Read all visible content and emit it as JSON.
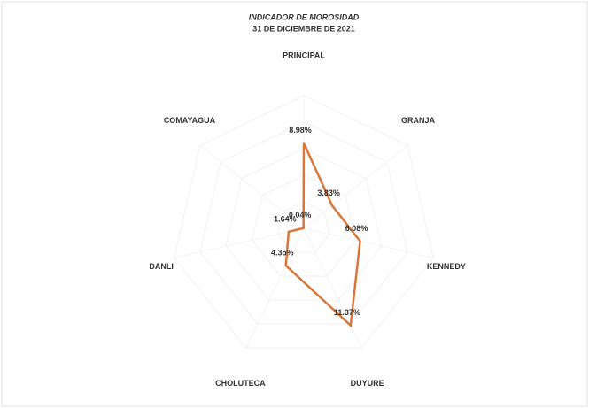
{
  "chart_data": {
    "type": "radar",
    "title": "INDICADOR DE MOROSIDAD",
    "subtitle": "31 DE DICIEMBRE DE 2021",
    "categories": [
      "PRINCIPAL",
      "GRANJA",
      "KENNEDY",
      "DUYURE",
      "CHOLUTECA",
      "DANLI",
      "COMAYAGUA"
    ],
    "values": [
      8.98,
      3.83,
      6.08,
      11.37,
      4.35,
      1.64,
      0.04
    ],
    "value_labels": [
      "8.98%",
      "3.83%",
      "6.08%",
      "11.37%",
      "4.35%",
      "1.64%",
      "0.04%"
    ],
    "color": "#d9773a",
    "ylim": [
      0,
      14
    ],
    "grid": true
  }
}
